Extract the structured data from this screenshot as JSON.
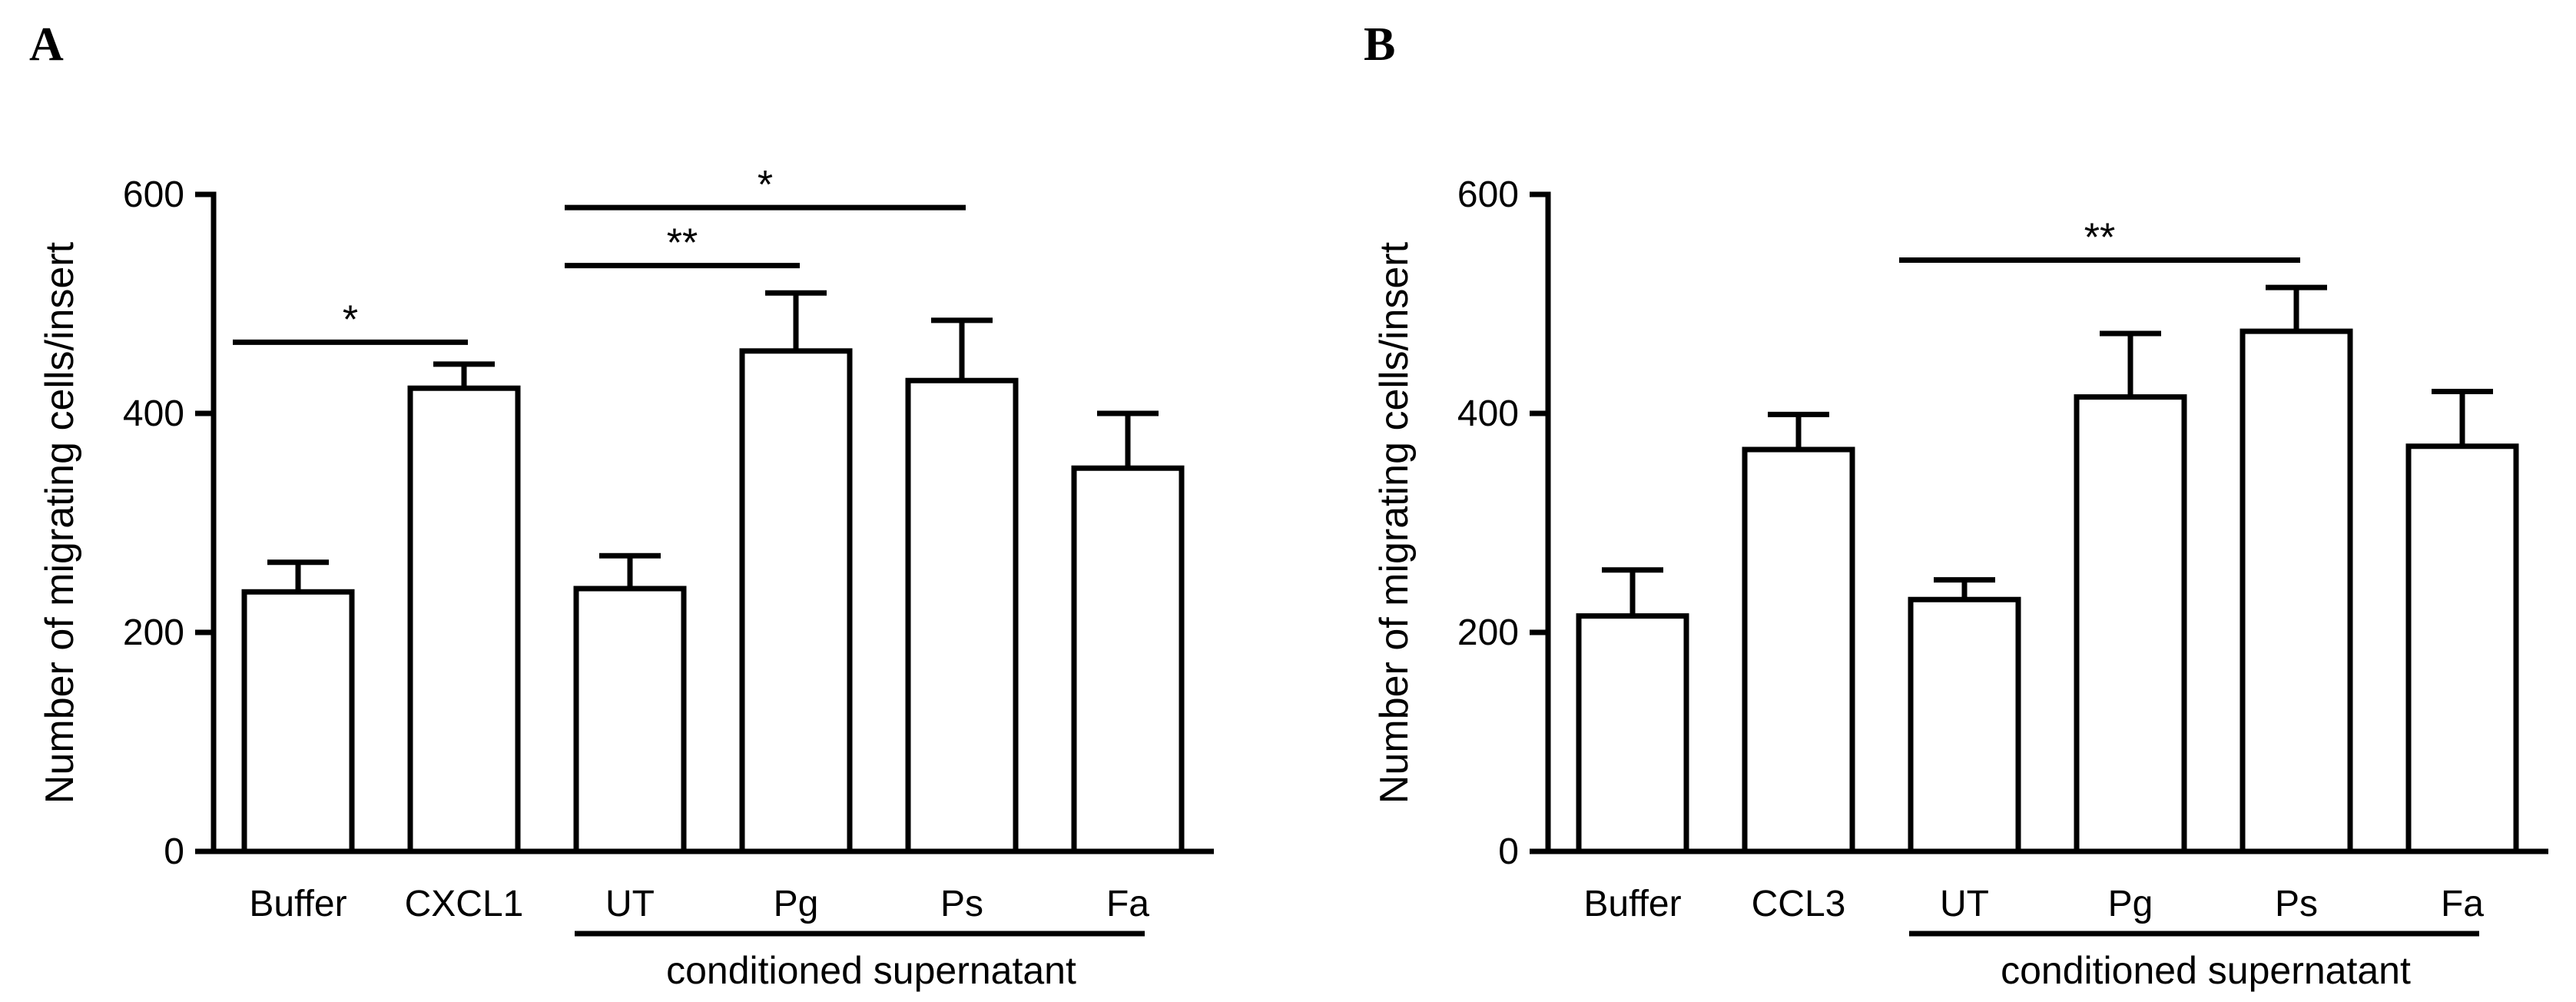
{
  "chart_data": [
    {
      "type": "bar",
      "panel_label": "A",
      "ylabel": "Number of migrating cells/insert",
      "ylim": [
        0,
        600
      ],
      "yticks": [
        0,
        200,
        400,
        600
      ],
      "categories": [
        "Buffer",
        "CXCL1",
        "UT",
        "Pg",
        "Ps",
        "Fa"
      ],
      "values": [
        237,
        423,
        240,
        457,
        430,
        350
      ],
      "errors": [
        27,
        22,
        30,
        53,
        55,
        50
      ],
      "group_label": "conditioned supernatant",
      "group_start": 2,
      "group_end": 5,
      "significance": [
        {
          "from": 0,
          "to": 1,
          "y": 465,
          "label": "*"
        },
        {
          "from": 2,
          "to": 3,
          "y": 535,
          "label": "**"
        },
        {
          "from": 2,
          "to": 4,
          "y": 588,
          "label": "*"
        }
      ]
    },
    {
      "type": "bar",
      "panel_label": "B",
      "ylabel": "Number of migrating cells/insert",
      "ylim": [
        0,
        600
      ],
      "yticks": [
        0,
        200,
        400,
        600
      ],
      "categories": [
        "Buffer",
        "CCL3",
        "UT",
        "Pg",
        "Ps",
        "Fa"
      ],
      "values": [
        215,
        367,
        230,
        415,
        475,
        370
      ],
      "errors": [
        42,
        32,
        18,
        58,
        40,
        50
      ],
      "group_label": "conditioned supernatant",
      "group_start": 2,
      "group_end": 5,
      "significance": [
        {
          "from": 2,
          "to": 4,
          "y": 540,
          "label": "**"
        }
      ]
    }
  ]
}
